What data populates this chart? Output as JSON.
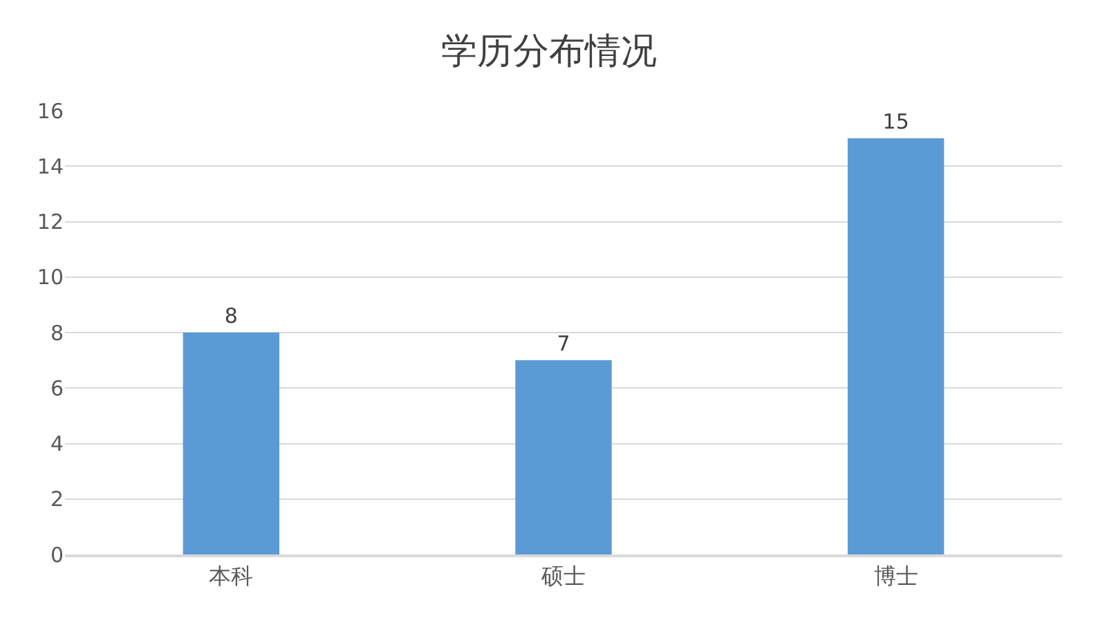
{
  "chart_data": {
    "type": "bar",
    "title": "学历分布情况",
    "categories": [
      "本科",
      "硕士",
      "博士"
    ],
    "values": [
      8,
      7,
      15
    ],
    "color": "#5b9bd5",
    "ylim": [
      0,
      16
    ],
    "yticks": [
      0,
      2,
      4,
      6,
      8,
      10,
      12,
      14,
      16
    ],
    "grid": "y",
    "data_labels": true,
    "legend": false
  }
}
